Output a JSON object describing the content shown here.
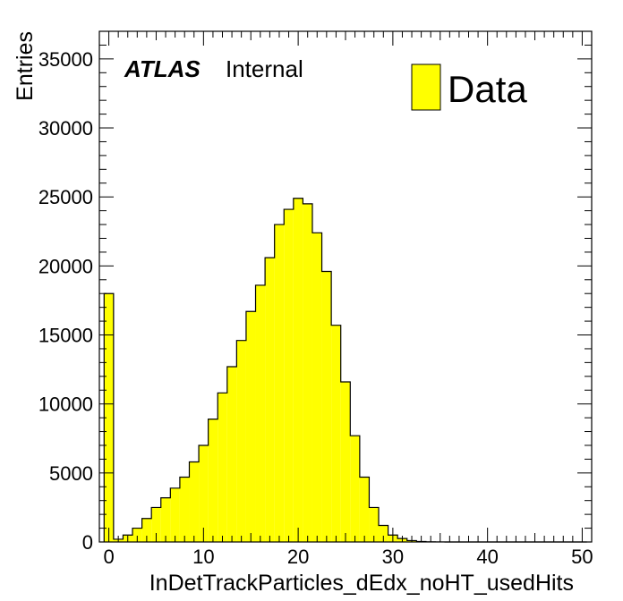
{
  "chart_data": {
    "type": "bar",
    "xlabel": "InDetTrackParticles_dEdx_noHT_usedHits",
    "ylabel": "Entries",
    "xlim": [
      -1,
      51
    ],
    "ylim": [
      0,
      37000
    ],
    "bin_width": 1,
    "x_ticks": [
      0,
      10,
      20,
      30,
      40,
      50
    ],
    "y_ticks": [
      0,
      5000,
      10000,
      15000,
      20000,
      25000,
      30000,
      35000
    ],
    "bin_edges_start": -0.5,
    "series": [
      {
        "name": "Data",
        "color": "#ffff00",
        "values": [
          18000,
          200,
          500,
          1000,
          1700,
          2500,
          3200,
          3900,
          4700,
          5800,
          7000,
          8900,
          10800,
          12700,
          14600,
          16700,
          18600,
          20600,
          23000,
          24100,
          24900,
          24500,
          22400,
          19600,
          15700,
          11600,
          7700,
          4700,
          2500,
          1200,
          500,
          250,
          100,
          30,
          10,
          5,
          0,
          0,
          0,
          0,
          0,
          0,
          0,
          0,
          0,
          0,
          0,
          0,
          0,
          0,
          0
        ]
      }
    ],
    "legend": {
      "position": "top-right",
      "label": "Data"
    },
    "annotation": {
      "bold": "ATLAS",
      "text": "Internal"
    },
    "grid": false
  }
}
